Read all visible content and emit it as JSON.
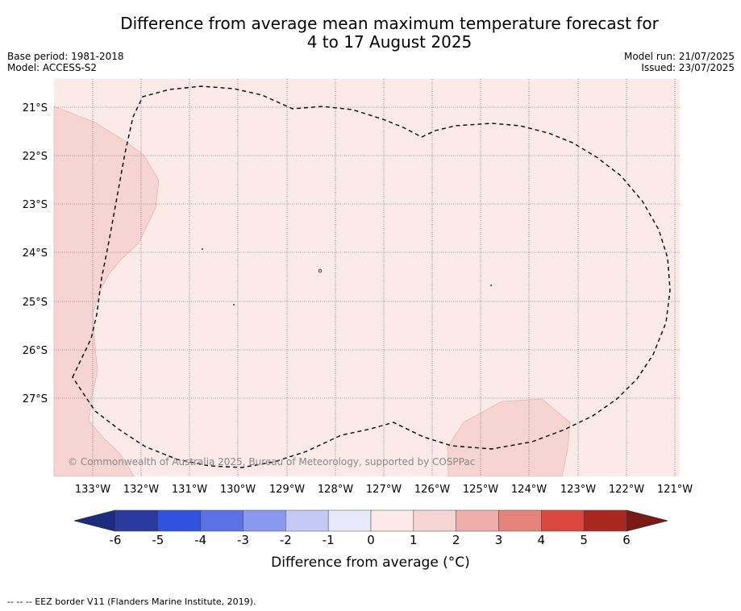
{
  "header": {
    "title_line1": "Difference from average mean maximum temperature forecast for",
    "title_line2": "4 to 17 August 2025",
    "base_period": "Base period: 1981-2018",
    "model": "Model: ACCESS-S2",
    "model_run": "Model run: 21/07/2025",
    "issued": "Issued: 23/07/2025"
  },
  "map": {
    "lon_labels": [
      "133°W",
      "132°W",
      "131°W",
      "130°W",
      "129°W",
      "128°W",
      "127°W",
      "126°W",
      "125°W",
      "124°W",
      "123°W",
      "122°W",
      "121°W"
    ],
    "lat_labels": [
      "21°S",
      "22°S",
      "23°S",
      "24°S",
      "25°S",
      "26°S",
      "27°S"
    ],
    "copyright": "© Commonwealth of Australia 2025, Bureau of Meteorology, supported by COSPPac",
    "colors": {
      "anomaly_0_1": "#fbeae8",
      "anomaly_1_2": "#f5d4d2",
      "grid": "#5a4a6a",
      "eez_border": "#000000"
    }
  },
  "colorbar": {
    "title": "Difference from average (°C)",
    "ticks": [
      "-6",
      "-5",
      "-4",
      "-3",
      "-2",
      "-1",
      "0",
      "1",
      "2",
      "3",
      "4",
      "5",
      "6"
    ],
    "colors": [
      "#2b3a9e",
      "#3152e0",
      "#5b72e6",
      "#8899ee",
      "#c3c9f3",
      "#e8eafb",
      "#fbeae8",
      "#f5d4d2",
      "#eeaeaa",
      "#e8837c",
      "#d9473e",
      "#a8271f"
    ],
    "under_color": "#1a2b80",
    "over_color": "#7a1a14"
  },
  "legend": {
    "footnote": "-- -- -- EEZ border V11 (Flanders Marine Institute, 2019)."
  }
}
